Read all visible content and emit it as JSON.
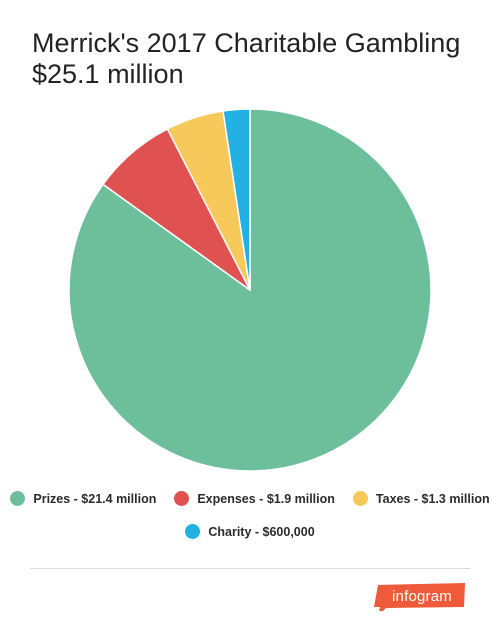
{
  "chart_data": {
    "type": "pie",
    "title": "Merrick's 2017 Charitable Gambling",
    "subtitle": "$25.1 million",
    "slices": [
      {
        "label": "Prizes - $21.4 million",
        "value": 21.4,
        "color": "#6dbf9c"
      },
      {
        "label": "Expenses - $1.9 million",
        "value": 1.9,
        "color": "#e05252"
      },
      {
        "label": "Taxes - $1.3 million",
        "value": 1.3,
        "color": "#f7c85a"
      },
      {
        "label": "Charity - $600,000",
        "value": 0.6,
        "color": "#21b2e3"
      }
    ],
    "legend_position": "bottom"
  },
  "branding": {
    "logo_text": "infogram",
    "logo_color": "#ef5a3a"
  }
}
